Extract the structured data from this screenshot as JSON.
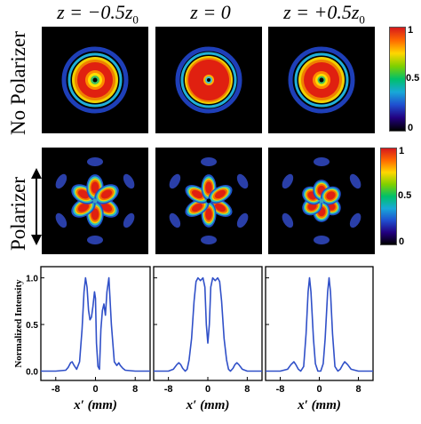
{
  "columns": [
    {
      "label_main": "z = −0.5z",
      "label_sub": "0"
    },
    {
      "label_main": "z = 0",
      "label_sub": ""
    },
    {
      "label_main": "z = +0.5z",
      "label_sub": "0"
    }
  ],
  "rows": {
    "top_label": "No Polarizer",
    "middle_label": "Polarizer"
  },
  "colorbar": {
    "ticks": [
      "1",
      "0.5",
      "0"
    ],
    "colors": [
      "#d7191c",
      "#ff6a00",
      "#ffd700",
      "#7fd000",
      "#00c06a",
      "#18a8d8",
      "#1f4fd0",
      "#220080",
      "#000000"
    ]
  },
  "chart_data": [
    {
      "type": "line",
      "title": "",
      "xlabel": "x′ (mm)",
      "ylabel": "Normalized Intensity",
      "x_ticks": [
        "-8",
        "0",
        "8"
      ],
      "y_ticks": [
        "0.0",
        "0.5",
        "1.0"
      ],
      "xlim": [
        -11,
        11
      ],
      "ylim": [
        -0.1,
        1.12
      ],
      "series": [
        {
          "color": "#3050c8",
          "x": [
            -11,
            -8,
            -6,
            -5.5,
            -5,
            -4.7,
            -4.3,
            -3.8,
            -3.2,
            -2.7,
            -2.3,
            -2,
            -1.7,
            -1.4,
            -1.1,
            -0.8,
            -0.5,
            -0.2,
            0,
            0.2,
            0.5,
            0.8,
            1.1,
            1.4,
            1.7,
            2,
            2.3,
            2.7,
            3.2,
            3.8,
            4.3,
            4.7,
            5,
            5.5,
            6,
            8,
            11
          ],
          "y": [
            0.0,
            0.0,
            0.01,
            0.04,
            0.09,
            0.1,
            0.06,
            0.02,
            0.1,
            0.45,
            0.85,
            1.0,
            0.9,
            0.65,
            0.55,
            0.58,
            0.7,
            0.85,
            0.78,
            0.3,
            0.05,
            0.02,
            0.45,
            0.65,
            0.72,
            0.6,
            0.85,
            1.0,
            0.5,
            0.1,
            0.06,
            0.09,
            0.06,
            0.03,
            0.01,
            0.0,
            0.0
          ]
        }
      ]
    },
    {
      "type": "line",
      "title": "",
      "xlabel": "x′ (mm)",
      "ylabel": "",
      "x_ticks": [
        "-8",
        "0",
        "8"
      ],
      "y_ticks": [],
      "xlim": [
        -11,
        11
      ],
      "ylim": [
        -0.1,
        1.12
      ],
      "series": [
        {
          "color": "#3050c8",
          "x": [
            -11,
            -8,
            -7,
            -6.3,
            -5.9,
            -5.5,
            -5.1,
            -4.6,
            -4.2,
            -3.8,
            -3.3,
            -2.8,
            -2.4,
            -2,
            -1.5,
            -1,
            -0.6,
            -0.3,
            0,
            0.3,
            0.6,
            1,
            1.5,
            2,
            2.4,
            2.8,
            3.3,
            3.8,
            4.2,
            4.6,
            5.1,
            5.5,
            5.9,
            6.3,
            7,
            8,
            11
          ],
          "y": [
            0.0,
            0.0,
            0.02,
            0.07,
            0.09,
            0.07,
            0.03,
            0.0,
            0.02,
            0.12,
            0.35,
            0.75,
            0.96,
            1.0,
            0.97,
            1.0,
            0.9,
            0.5,
            0.3,
            0.5,
            0.9,
            1.0,
            0.97,
            1.0,
            0.96,
            0.75,
            0.35,
            0.12,
            0.02,
            0.0,
            0.03,
            0.07,
            0.09,
            0.07,
            0.02,
            0.0,
            0.0
          ]
        }
      ]
    },
    {
      "type": "line",
      "title": "",
      "xlabel": "x′ (mm)",
      "ylabel": "",
      "x_ticks": [
        "-8",
        "0",
        "8"
      ],
      "y_ticks": [],
      "xlim": [
        -11,
        11
      ],
      "ylim": [
        -0.1,
        1.12
      ],
      "series": [
        {
          "color": "#3050c8",
          "x": [
            -11,
            -8,
            -6.5,
            -5.8,
            -5.2,
            -4.8,
            -4.3,
            -3.8,
            -3.2,
            -2.7,
            -2.3,
            -2,
            -1.7,
            -1.2,
            -0.8,
            -0.3,
            0,
            0.3,
            0.8,
            1.2,
            1.7,
            2,
            2.3,
            2.7,
            3.2,
            3.8,
            4.3,
            4.8,
            5.2,
            5.8,
            6.5,
            8,
            11
          ],
          "y": [
            0.0,
            0.0,
            0.02,
            0.07,
            0.1,
            0.07,
            0.02,
            0.0,
            0.05,
            0.4,
            0.85,
            1.0,
            0.85,
            0.35,
            0.08,
            0.0,
            0.0,
            0.0,
            0.08,
            0.35,
            0.85,
            1.0,
            0.85,
            0.4,
            0.05,
            0.0,
            0.02,
            0.07,
            0.1,
            0.07,
            0.02,
            0.0,
            0.0
          ]
        }
      ]
    }
  ]
}
